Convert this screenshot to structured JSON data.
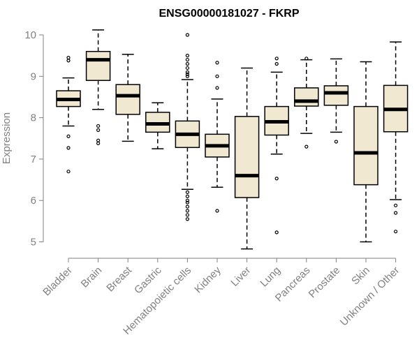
{
  "chart_data": {
    "type": "boxplot",
    "title": "ENSG00000181027 - FKRP",
    "xlabel": "",
    "ylabel": "Expression",
    "ylim": [
      4.7,
      10.2
    ],
    "yticks": [
      5,
      6,
      7,
      8,
      9,
      10
    ],
    "grid": false,
    "legend": "none",
    "colors": {
      "box_fill": "#f0e8d0",
      "stroke": "#000000",
      "axis_text": "#808080"
    },
    "categories": [
      "Bladder",
      "Brain",
      "Breast",
      "Gastric",
      "Hematopoietic cells",
      "Kidney",
      "Liver",
      "Lung",
      "Pancreas",
      "Prostate",
      "Skin",
      "Unknown / Other"
    ],
    "boxes": [
      {
        "whisker_low": 7.8,
        "q1": 8.27,
        "median": 8.44,
        "q3": 8.65,
        "whisker_high": 8.96,
        "outliers": [
          9.45,
          9.38,
          7.55,
          7.27,
          6.7
        ]
      },
      {
        "whisker_low": 8.2,
        "q1": 8.9,
        "median": 9.4,
        "q3": 9.6,
        "whisker_high": 10.12,
        "outliers": [
          7.8,
          7.7,
          7.45,
          7.38
        ]
      },
      {
        "whisker_low": 7.43,
        "q1": 8.08,
        "median": 8.53,
        "q3": 8.8,
        "whisker_high": 9.53,
        "outliers": []
      },
      {
        "whisker_low": 7.25,
        "q1": 7.65,
        "median": 7.85,
        "q3": 8.13,
        "whisker_high": 8.36,
        "outliers": []
      },
      {
        "whisker_low": 6.27,
        "q1": 7.28,
        "median": 7.6,
        "q3": 7.92,
        "whisker_high": 8.92,
        "outliers": [
          10.0,
          9.5,
          9.4,
          9.3,
          9.2,
          9.1,
          9.05,
          9.0,
          6.2,
          6.1,
          6.0,
          5.95,
          5.85,
          5.75,
          5.65,
          5.55
        ]
      },
      {
        "whisker_low": 6.32,
        "q1": 7.05,
        "median": 7.32,
        "q3": 7.6,
        "whisker_high": 8.45,
        "outliers": [
          9.33,
          9.0,
          8.72,
          5.75
        ]
      },
      {
        "whisker_low": 4.83,
        "q1": 6.07,
        "median": 6.6,
        "q3": 8.03,
        "whisker_high": 9.2,
        "outliers": []
      },
      {
        "whisker_low": 7.12,
        "q1": 7.58,
        "median": 7.9,
        "q3": 8.27,
        "whisker_high": 9.1,
        "outliers": [
          9.43,
          9.3,
          6.53,
          5.23
        ]
      },
      {
        "whisker_low": 7.62,
        "q1": 8.28,
        "median": 8.4,
        "q3": 8.72,
        "whisker_high": 9.4,
        "outliers": [
          9.43,
          7.3
        ]
      },
      {
        "whisker_low": 7.65,
        "q1": 8.3,
        "median": 8.6,
        "q3": 8.77,
        "whisker_high": 9.42,
        "outliers": [
          7.42
        ]
      },
      {
        "whisker_low": 5.0,
        "q1": 6.38,
        "median": 7.15,
        "q3": 8.27,
        "whisker_high": 9.35,
        "outliers": []
      },
      {
        "whisker_low": 6.02,
        "q1": 7.66,
        "median": 8.2,
        "q3": 8.78,
        "whisker_high": 9.83,
        "outliers": [
          5.88,
          5.7,
          5.25
        ]
      }
    ]
  }
}
